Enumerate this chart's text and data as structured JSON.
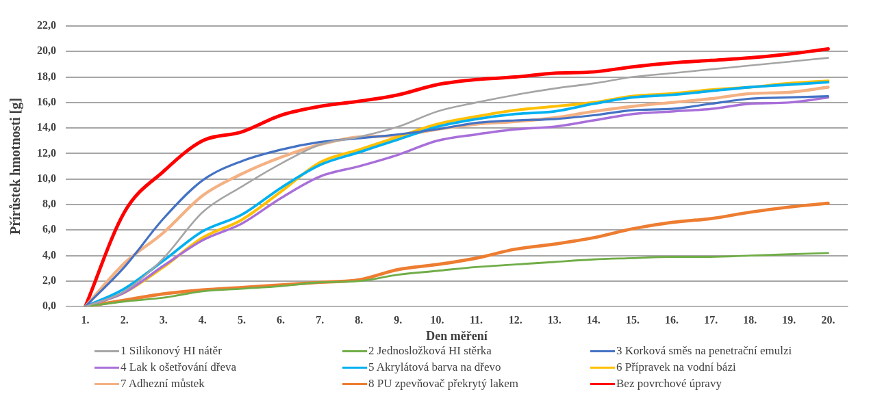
{
  "chart_data": {
    "type": "line",
    "xlabel": "Den měření",
    "ylabel": "Přírůstek hmotnosti [g]",
    "categories": [
      "1.",
      "2.",
      "3.",
      "4.",
      "5.",
      "6.",
      "7.",
      "8.",
      "9.",
      "10.",
      "11.",
      "12.",
      "13.",
      "14.",
      "15.",
      "16.",
      "17.",
      "18.",
      "19.",
      "20."
    ],
    "ylim": [
      0,
      22
    ],
    "yticks": [
      {
        "value": 0,
        "label": "0,0"
      },
      {
        "value": 2,
        "label": "2,0"
      },
      {
        "value": 4,
        "label": "4,0"
      },
      {
        "value": 6,
        "label": "6,0"
      },
      {
        "value": 8,
        "label": "8,0"
      },
      {
        "value": 10,
        "label": "10,0"
      },
      {
        "value": 12,
        "label": "12,0"
      },
      {
        "value": 14,
        "label": "14,0"
      },
      {
        "value": 16,
        "label": "16,0"
      },
      {
        "value": 18,
        "label": "18,0"
      },
      {
        "value": 20,
        "label": "20,0"
      },
      {
        "value": 22,
        "label": "22,0"
      }
    ],
    "grid": "y",
    "legend": "bottom",
    "marker": "none",
    "line_style": "solid",
    "series": [
      {
        "name": "1 Silikonový HI nátěr",
        "color": "#a5a5a5",
        "values": [
          0,
          1.2,
          3.8,
          7.4,
          9.4,
          11.2,
          12.7,
          13.3,
          14.1,
          15.3,
          16.0,
          16.6,
          17.1,
          17.5,
          18.0,
          18.3,
          18.6,
          18.9,
          19.2,
          19.5
        ]
      },
      {
        "name": "2 Jednosložková HI stěrka",
        "color": "#70ad47",
        "values": [
          0,
          0.4,
          0.7,
          1.2,
          1.4,
          1.6,
          1.9,
          2.0,
          2.5,
          2.8,
          3.1,
          3.3,
          3.5,
          3.7,
          3.8,
          3.9,
          3.9,
          4.0,
          4.1,
          4.2
        ]
      },
      {
        "name": "3 Korková směs na penetrační emulzi",
        "color": "#4472c4",
        "values": [
          0,
          3.1,
          6.9,
          9.9,
          11.4,
          12.3,
          12.9,
          13.2,
          13.5,
          13.9,
          14.4,
          14.6,
          14.7,
          15.0,
          15.4,
          15.5,
          15.9,
          16.3,
          16.4,
          16.5
        ]
      },
      {
        "name": "4 Lak k ošetřování dřeva",
        "color": "#a86fd9",
        "values": [
          0,
          1.1,
          3.2,
          5.2,
          6.5,
          8.5,
          10.2,
          11.0,
          11.9,
          13.0,
          13.5,
          13.9,
          14.1,
          14.6,
          15.1,
          15.3,
          15.5,
          15.9,
          16.0,
          16.4
        ]
      },
      {
        "name": "5 Akrylátová barva na dřevo",
        "color": "#00b0f0",
        "values": [
          0,
          1.4,
          3.6,
          5.9,
          7.2,
          9.3,
          11.1,
          12.1,
          13.1,
          14.1,
          14.7,
          15.1,
          15.3,
          15.9,
          16.4,
          16.6,
          16.9,
          17.2,
          17.4,
          17.6
        ]
      },
      {
        "name": "6 Přípravek na vodní bázi",
        "color": "#ffc000",
        "values": [
          0,
          1.1,
          3.1,
          5.4,
          6.8,
          9.0,
          11.3,
          12.3,
          13.3,
          14.3,
          14.9,
          15.4,
          15.7,
          16.0,
          16.5,
          16.7,
          17.0,
          17.2,
          17.5,
          17.7
        ]
      },
      {
        "name": "7 Adhezní můstek",
        "color": "#f4b183",
        "values": [
          0,
          3.4,
          5.8,
          8.7,
          10.4,
          11.7,
          12.7,
          13.3,
          13.4,
          13.9,
          14.3,
          14.5,
          14.8,
          15.3,
          15.7,
          16.0,
          16.3,
          16.7,
          16.8,
          17.2
        ]
      },
      {
        "name": "8 PU zpevňovač překrytý lakem",
        "color": "#ed7d31",
        "values": [
          0,
          0.5,
          1.0,
          1.3,
          1.5,
          1.7,
          1.9,
          2.1,
          2.9,
          3.3,
          3.8,
          4.5,
          4.9,
          5.4,
          6.1,
          6.6,
          6.9,
          7.4,
          7.8,
          8.1
        ]
      },
      {
        "name": "Bez povrchové úpravy",
        "color": "#ff0000",
        "values": [
          0,
          7.4,
          10.6,
          13.0,
          13.7,
          15.0,
          15.7,
          16.1,
          16.6,
          17.4,
          17.8,
          18.0,
          18.3,
          18.4,
          18.8,
          19.1,
          19.3,
          19.5,
          19.8,
          20.2
        ]
      }
    ]
  }
}
